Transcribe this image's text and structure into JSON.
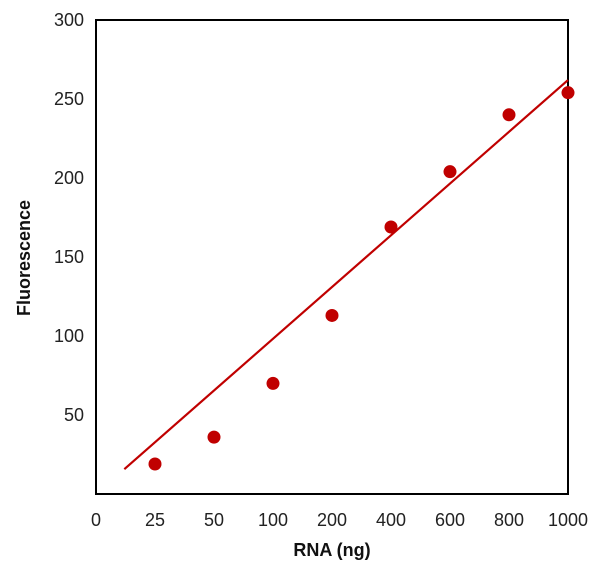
{
  "chart_data": {
    "type": "scatter",
    "title": "",
    "xlabel": "RNA (ng)",
    "ylabel": "Fluorescence",
    "x_tick_labels": [
      "0",
      "25",
      "50",
      "100",
      "200",
      "400",
      "600",
      "800",
      "1000"
    ],
    "y_ticks": [
      50,
      100,
      150,
      200,
      250,
      300
    ],
    "ylim": [
      0,
      300
    ],
    "grid": false,
    "legend": "none",
    "series": [
      {
        "x": [
          "25",
          "50",
          "100",
          "200",
          "400",
          "600",
          "800",
          "1000"
        ],
        "y": [
          19,
          36,
          70,
          113,
          169,
          204,
          240,
          254
        ],
        "marker_color": "#C00000"
      }
    ],
    "trendline": {
      "color": "#C00000",
      "start": [
        "0",
        0
      ],
      "end": [
        "1000",
        262
      ]
    }
  }
}
